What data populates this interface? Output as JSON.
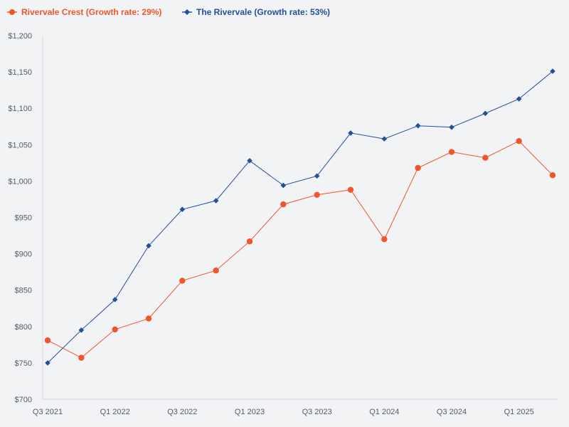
{
  "chart_data": {
    "type": "line",
    "title": "",
    "xlabel": "",
    "ylabel": "",
    "ylim": [
      700,
      1200
    ],
    "y_tick_values": [
      700,
      750,
      800,
      850,
      900,
      950,
      1000,
      1050,
      1100,
      1150,
      1200
    ],
    "y_tick_labels": [
      "$700",
      "$750",
      "$800",
      "$850",
      "$900",
      "$950",
      "$1,000",
      "$1,050",
      "$1,100",
      "$1,150",
      "$1,200"
    ],
    "categories": [
      "Q3 2021",
      "Q4 2021",
      "Q1 2022",
      "Q2 2022",
      "Q3 2022",
      "Q4 2022",
      "Q1 2023",
      "Q2 2023",
      "Q3 2023",
      "Q4 2023",
      "Q1 2024",
      "Q2 2024",
      "Q3 2024",
      "Q4 2024",
      "Q1 2025",
      "Q2 2025"
    ],
    "x_tick_labels": [
      "Q3 2021",
      "Q1 2022",
      "Q3 2022",
      "Q1 2023",
      "Q3 2023",
      "Q1 2024",
      "Q3 2024",
      "Q1 2025"
    ],
    "legend_position": "top-left",
    "series": [
      {
        "name": "Rivervale Crest (Growth rate: 29%)",
        "color": "#f0562c",
        "marker": "circle",
        "values": [
          781,
          757,
          796,
          811,
          863,
          877,
          917,
          968,
          981,
          988,
          920,
          1018,
          1040,
          1032,
          1055,
          1008
        ]
      },
      {
        "name": "The Rivervale (Growth rate: 53%)",
        "color": "#23509b",
        "marker": "diamond",
        "values": [
          750,
          795,
          837,
          911,
          961,
          973,
          1028,
          994,
          1007,
          1066,
          1058,
          1076,
          1074,
          1093,
          1113,
          1151
        ]
      }
    ]
  }
}
